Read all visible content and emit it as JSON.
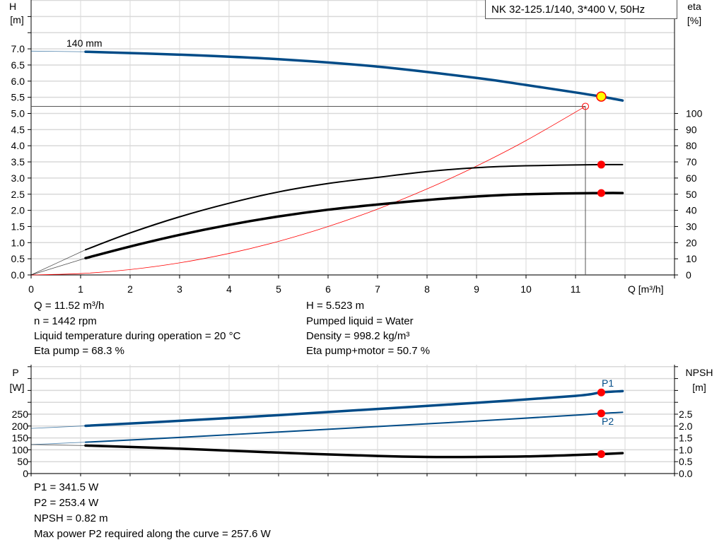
{
  "chart_data": [
    {
      "type": "line",
      "title": "NK 32-125.1/140, 3*400 V, 50Hz",
      "xlabel": "Q [m³/h]",
      "ylabel_left": [
        "H",
        "[m]"
      ],
      "ylabel_right": [
        "eta",
        "[%]"
      ],
      "xlim": [
        0,
        13
      ],
      "ylim_left": [
        0,
        8.5
      ],
      "ylim_right_percent": [
        0,
        100
      ],
      "x_ticks": [
        "0",
        "1",
        "2",
        "3",
        "4",
        "5",
        "6",
        "7",
        "8",
        "9",
        "10",
        "11"
      ],
      "y_ticks_left": [
        "0.0",
        "0.5",
        "1.0",
        "1.5",
        "2.0",
        "2.5",
        "3.0",
        "3.5",
        "4.0",
        "4.5",
        "5.0",
        "5.5",
        "6.0",
        "6.5",
        "7.0"
      ],
      "y_ticks_right": [
        "0",
        "10",
        "20",
        "30",
        "40",
        "50",
        "60",
        "70",
        "80",
        "90",
        "100"
      ],
      "grid": true,
      "curve_label": "140 mm",
      "series": [
        {
          "id": "H",
          "axis": "left",
          "color": "#004b87",
          "x": [
            0,
            1.1,
            3,
            5,
            7,
            9,
            10,
            11,
            11.52,
            11.95
          ],
          "y": [
            6.93,
            6.91,
            6.82,
            6.68,
            6.45,
            6.1,
            5.88,
            5.65,
            5.523,
            5.4
          ]
        },
        {
          "id": "eta-pump",
          "axis": "right",
          "color": "#000000",
          "x": [
            0,
            1.1,
            2,
            3,
            4,
            5,
            6,
            7,
            8,
            9,
            10,
            11.52,
            11.95
          ],
          "y": [
            0,
            15.6,
            26,
            36,
            44.4,
            51.4,
            56.6,
            60.4,
            64,
            66.4,
            67.6,
            68.3,
            68.3
          ]
        },
        {
          "id": "eta-pump-motor",
          "axis": "right",
          "color": "#000000",
          "x": [
            0,
            1.1,
            2,
            3,
            4,
            5,
            6,
            7,
            8,
            9,
            10,
            11.52,
            11.95
          ],
          "y": [
            0,
            10.4,
            17.6,
            24.8,
            31,
            36.2,
            40.4,
            43.6,
            46.4,
            48.6,
            50,
            50.7,
            50.7
          ]
        },
        {
          "id": "system-curve",
          "axis": "left",
          "color": "#ff0000",
          "x": [
            0,
            1,
            2,
            3,
            4,
            5,
            6,
            7,
            8,
            9,
            10,
            11.2
          ],
          "y": [
            0,
            0.042,
            0.166,
            0.374,
            0.666,
            1.04,
            1.498,
            2.039,
            2.663,
            3.37,
            4.16,
            5.22
          ]
        }
      ],
      "operating_point": {
        "Q": 11.52,
        "H": 5.523,
        "eta_pump": 68.3,
        "eta_pump_motor": 50.7
      },
      "reference_point": {
        "Q": 11.2,
        "H": 5.22
      }
    },
    {
      "type": "line",
      "xlim": [
        0,
        13
      ],
      "ylabel_left": [
        "P",
        "[W]"
      ],
      "ylabel_right": [
        "NPSH",
        "[m]"
      ],
      "ylim_left": [
        0,
        460
      ],
      "ylim_right": [
        0,
        4.6
      ],
      "y_ticks_left": [
        "0",
        "50",
        "100",
        "150",
        "200",
        "250"
      ],
      "y_ticks_right": [
        "0.0",
        "0.5",
        "1.0",
        "1.5",
        "2.0",
        "2.5"
      ],
      "grid": true,
      "series": [
        {
          "name": "P1",
          "axis": "left",
          "color": "#004b87",
          "x": [
            0,
            1.1,
            3,
            5,
            7,
            9,
            11,
            11.52,
            11.95
          ],
          "y": [
            190,
            201,
            222,
            246,
            272,
            298,
            327,
            341.5,
            347
          ]
        },
        {
          "name": "P2",
          "axis": "left",
          "color": "#004b87",
          "x": [
            0,
            1.1,
            3,
            5,
            7,
            9,
            11,
            11.52,
            11.95
          ],
          "y": [
            122,
            132,
            152,
            175,
            198,
            221,
            246,
            253.4,
            258
          ]
        },
        {
          "id": "NPSH",
          "axis": "right",
          "color": "#000000",
          "x": [
            0,
            1.1,
            3,
            5,
            7,
            8,
            9,
            10,
            11,
            11.52,
            11.95
          ],
          "y": [
            1.22,
            1.18,
            1.05,
            0.88,
            0.74,
            0.7,
            0.7,
            0.72,
            0.78,
            0.82,
            0.86
          ]
        }
      ],
      "operating_point": {
        "P1": 341.5,
        "P2": 253.4,
        "NPSH": 0.82
      }
    }
  ],
  "info_top": {
    "q": "Q = 11.52 m³/h",
    "n": "n = 1442 rpm",
    "temp": "Liquid temperature during operation = 20 °C",
    "eta_pump": "Eta pump = 68.3 %",
    "h": "H = 5.523 m",
    "liquid": "Pumped liquid = Water",
    "density": "Density = 998.2 kg/m³",
    "eta_pm": "Eta pump+motor = 50.7 %"
  },
  "info_bottom": {
    "p1": "P1 = 341.5 W",
    "p2": "P2 = 253.4 W",
    "npsh": "NPSH = 0.82 m",
    "maxp2": "Max power P2 required along the curve = 257.6 W"
  },
  "colors": {
    "curve_blue": "#004b87",
    "point_red": "#ff0000",
    "point_yellow": "#ffff00",
    "grid": "#d9d9d9"
  }
}
